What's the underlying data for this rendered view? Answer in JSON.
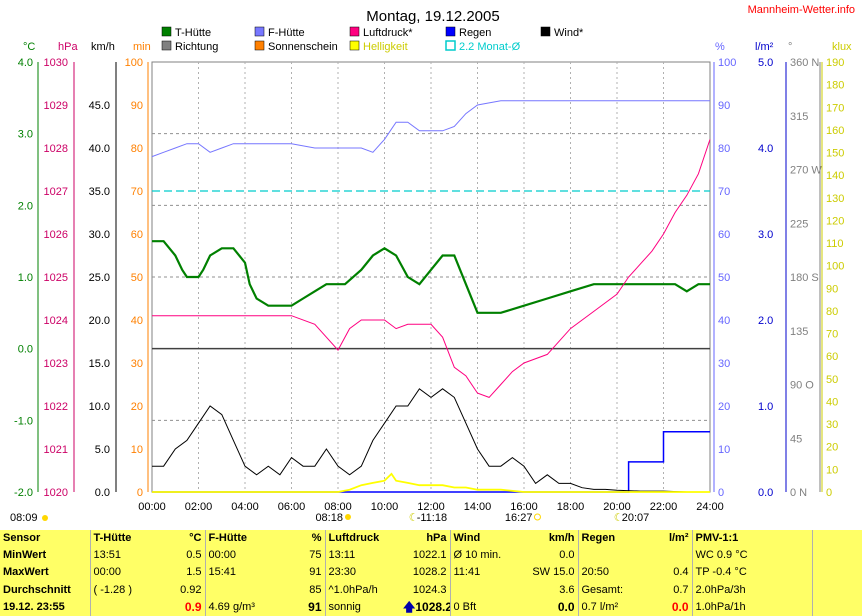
{
  "page_title": "Montag, 19.12.2005",
  "site": "Mannheim-Wetter.info",
  "chart_data": {
    "type": "line",
    "x_range": [
      "00:00",
      "24:00"
    ],
    "x_ticks": [
      "00:00",
      "02:00",
      "04:00",
      "06:00",
      "08:00",
      "10:00",
      "12:00",
      "14:00",
      "16:00",
      "18:00",
      "20:00",
      "22:00",
      "24:00"
    ],
    "axes": [
      {
        "unit": "°C",
        "color": "#008000",
        "range": [
          -2.0,
          4.0
        ],
        "ticks": [
          "4.0",
          "3.0",
          "2.0",
          "1.0",
          "0.0",
          "-1.0",
          "-2.0"
        ]
      },
      {
        "unit": "hPa",
        "color": "#cc0066",
        "range": [
          1020,
          1030
        ],
        "ticks": [
          "1030",
          "1029",
          "1028",
          "1027",
          "1026",
          "1025",
          "1024",
          "1023",
          "1022",
          "1021",
          "1020"
        ]
      },
      {
        "unit": "km/h",
        "color": "#000000",
        "range": [
          0,
          50
        ],
        "ticks": [
          "45.0",
          "40.0",
          "35.0",
          "30.0",
          "25.0",
          "20.0",
          "15.0",
          "10.0",
          "5.0",
          "0.0"
        ]
      },
      {
        "unit": "min",
        "color": "#ff8000",
        "range": [
          0,
          100
        ],
        "ticks": [
          "100",
          "90",
          "80",
          "70",
          "60",
          "50",
          "40",
          "30",
          "20",
          "10",
          "0"
        ]
      },
      {
        "unit": "%",
        "color": "#6666ff",
        "range": [
          0,
          100
        ],
        "ticks": [
          "100",
          "90",
          "80",
          "70",
          "60",
          "50",
          "40",
          "30",
          "20",
          "10",
          "0"
        ]
      },
      {
        "unit": "l/m²",
        "color": "#0000cc",
        "range": [
          0,
          5
        ],
        "ticks": [
          "5.0",
          "4.0",
          "3.0",
          "2.0",
          "1.0",
          "0.0"
        ]
      },
      {
        "unit": "°",
        "color": "#808080",
        "range": [
          0,
          360
        ],
        "ticks": [
          "360 N",
          "315",
          "270 W",
          "225",
          "180 S",
          "135",
          "90 O",
          "45",
          "0 N"
        ]
      },
      {
        "unit": "klux",
        "color": "#cccc00",
        "range": [
          0,
          190
        ],
        "ticks": [
          "190",
          "180",
          "170",
          "160",
          "150",
          "140",
          "130",
          "120",
          "110",
          "100",
          "90",
          "80",
          "70",
          "60",
          "50",
          "40",
          "30",
          "20",
          "10",
          "0"
        ]
      }
    ],
    "legend": [
      {
        "label": "T-Hütte",
        "color": "#008000"
      },
      {
        "label": "F-Hütte",
        "color": "#7777ff"
      },
      {
        "label": "Luftdruck*",
        "color": "#ff0080"
      },
      {
        "label": "Regen",
        "color": "#0000ff"
      },
      {
        "label": "Wind*",
        "color": "#000000"
      },
      {
        "label": "Richtung",
        "color": "#808080"
      },
      {
        "label": "Sonnenschein",
        "color": "#ff8000"
      },
      {
        "label": "Helligkeit",
        "color": "#ffff00"
      },
      {
        "label": "2.2 Monat-Ø",
        "color": "#00cccc"
      }
    ],
    "monthly_avg_temp_c": 2.2,
    "series": [
      {
        "name": "T-Hütte",
        "axis": "°C",
        "color": "#008000",
        "x": [
          0,
          0.5,
          1,
          1.3,
          1.5,
          2,
          2.2,
          2.5,
          3,
          3.5,
          4,
          4.2,
          4.5,
          5,
          5.5,
          6,
          6.5,
          7,
          7.5,
          8,
          8.3,
          9,
          9.5,
          10,
          10.5,
          11,
          11.5,
          12,
          12.5,
          13,
          13.5,
          14,
          15,
          16,
          17,
          18,
          19,
          20,
          21,
          22,
          22.5,
          23,
          23.5,
          24
        ],
        "y": [
          1.5,
          1.5,
          1.3,
          1.1,
          1.0,
          1.0,
          1.1,
          1.3,
          1.4,
          1.4,
          1.2,
          0.9,
          0.7,
          0.6,
          0.6,
          0.6,
          0.7,
          0.8,
          0.9,
          0.9,
          0.9,
          1.1,
          1.3,
          1.4,
          1.3,
          1.0,
          0.9,
          1.1,
          1.3,
          1.3,
          0.9,
          0.5,
          0.5,
          0.6,
          0.7,
          0.8,
          0.9,
          0.9,
          0.9,
          0.9,
          0.9,
          0.8,
          0.9,
          0.9
        ]
      },
      {
        "name": "F-Hütte",
        "axis": "%",
        "color": "#7777ff",
        "x": [
          0,
          0.5,
          1,
          1.5,
          2,
          2.5,
          3,
          3.5,
          4,
          5,
          6,
          7,
          8,
          8.5,
          9,
          9.5,
          10,
          10.5,
          11,
          11.5,
          12,
          12.5,
          13,
          13.5,
          14,
          15,
          16,
          17,
          18,
          19,
          20,
          21,
          22,
          23,
          24
        ],
        "y": [
          78,
          79,
          80,
          81,
          81,
          79,
          80,
          81,
          81,
          81,
          81,
          80,
          80,
          80,
          80,
          79,
          82,
          86,
          86,
          84,
          84,
          84,
          85,
          88,
          90,
          91,
          91,
          91,
          91,
          91,
          91,
          91,
          91,
          91,
          91
        ]
      },
      {
        "name": "Luftdruck*",
        "axis": "hPa",
        "color": "#ff0080",
        "x": [
          0,
          2,
          4,
          6,
          7,
          7.5,
          8,
          8.5,
          9,
          9.5,
          10,
          10.5,
          11,
          12,
          12.5,
          13,
          13.5,
          14,
          14.5,
          15,
          15.5,
          16,
          17,
          18,
          19,
          20,
          20.5,
          21,
          21.5,
          22,
          22.5,
          23,
          23.5,
          24
        ],
        "y": [
          1024.1,
          1024.1,
          1024.1,
          1024.1,
          1023.9,
          1023.6,
          1023.3,
          1023.8,
          1024.0,
          1024.0,
          1024.0,
          1023.8,
          1023.9,
          1023.9,
          1023.6,
          1022.9,
          1022.7,
          1022.3,
          1022.2,
          1022.5,
          1022.8,
          1023.0,
          1023.2,
          1023.8,
          1024.2,
          1024.6,
          1025.0,
          1025.3,
          1025.6,
          1026.0,
          1026.5,
          1026.9,
          1027.4,
          1028.2
        ]
      },
      {
        "name": "Regen",
        "axis": "l/m²",
        "color": "#0000ff",
        "x": [
          0,
          20.5,
          20.5,
          22,
          22,
          24
        ],
        "y": [
          0,
          0,
          0.35,
          0.35,
          0.7,
          0.7
        ]
      },
      {
        "name": "Wind*",
        "axis": "km/h",
        "color": "#000000",
        "x": [
          0,
          0.5,
          1,
          1.5,
          2,
          2.5,
          3,
          3.5,
          4,
          4.5,
          5,
          5.5,
          6,
          6.5,
          7,
          7.5,
          8,
          8.5,
          9,
          9.5,
          10,
          10.5,
          11,
          11.5,
          12,
          12.5,
          13,
          13.5,
          14,
          14.5,
          15,
          15.5,
          16,
          16.5,
          17,
          17.5,
          18,
          18.5,
          19,
          19.5,
          20,
          21,
          22,
          23,
          24
        ],
        "y": [
          3,
          3,
          5,
          6,
          8,
          10,
          9,
          6,
          3,
          2,
          3,
          2,
          4,
          3,
          3,
          5,
          3,
          2,
          3,
          6,
          8,
          10,
          10,
          12,
          11,
          12,
          11,
          8,
          5,
          3,
          3,
          4,
          3,
          1,
          2,
          1,
          1,
          0.5,
          0.3,
          0.3,
          0.2,
          0.1,
          0.1,
          0,
          0
        ]
      },
      {
        "name": "Helligkeit",
        "axis": "klux",
        "color": "#ffff00",
        "x": [
          0,
          8,
          8.5,
          9,
          9.5,
          10,
          10.3,
          10.5,
          11,
          11.5,
          12,
          12.5,
          13,
          13.5,
          14,
          15,
          16,
          17,
          24
        ],
        "y": [
          0,
          0,
          1,
          3,
          4,
          5,
          8,
          5,
          4,
          3,
          3,
          3,
          2,
          2,
          1,
          1,
          0,
          0,
          0
        ]
      }
    ]
  },
  "sun_markers": {
    "sunrise_text": "08:09",
    "sunset_text": "16:27",
    "sunrise_arrow": "08:18",
    "moonset": "11:18",
    "moonrise": "20:07"
  },
  "stats": {
    "headers": [
      "Sensor",
      "T-Hütte",
      "°C",
      "F-Hütte",
      "%",
      "Luftdruck",
      "hPa",
      "Wind",
      "km/h",
      "Regen",
      "l/m²",
      "PMV-1:1"
    ],
    "rows": [
      {
        "label": "MinWert",
        "t_time": "13:51",
        "t_val": "0.5",
        "f_time": "00:00",
        "f_val": "75",
        "p_time": "13:11",
        "p_val": "1022.1",
        "w_time": "Ø 10 min.",
        "w_val": "0.0",
        "r_time": "",
        "r_val": "",
        "pmv": "WC 0.9 °C"
      },
      {
        "label": "MaxWert",
        "t_time": "00:00",
        "t_val": "1.5",
        "f_time": "15:41",
        "f_val": "91",
        "p_time": "23:30",
        "p_val": "1028.2",
        "w_time": "11:41",
        "w_val": "SW 15.0",
        "r_time": "20:50",
        "r_val": "0.4",
        "pmv": "TP -0.4 °C"
      },
      {
        "label": "Durchschnitt",
        "t_time": "( -1.28 )",
        "t_val": "0.92",
        "f_time": "",
        "f_val": "85",
        "p_time": "^1.0hPa/h",
        "p_val": "1024.3",
        "w_time": "",
        "w_val": "3.6",
        "r_time": "Gesamt:",
        "r_val": "0.7",
        "pmv": "2.0hPa/3h"
      },
      {
        "label": "19.12. 23:55",
        "t_time": "",
        "t_val": "0.9",
        "f_time": "4.69 g/m³",
        "f_val": "91",
        "p_time": "sonnig",
        "p_val": "1028.2",
        "w_time": "0 Bft",
        "w_val": "0.0",
        "r_time": "0.7 l/m²",
        "r_val": "0.0",
        "pmv": "1.0hPa/1h"
      }
    ]
  }
}
